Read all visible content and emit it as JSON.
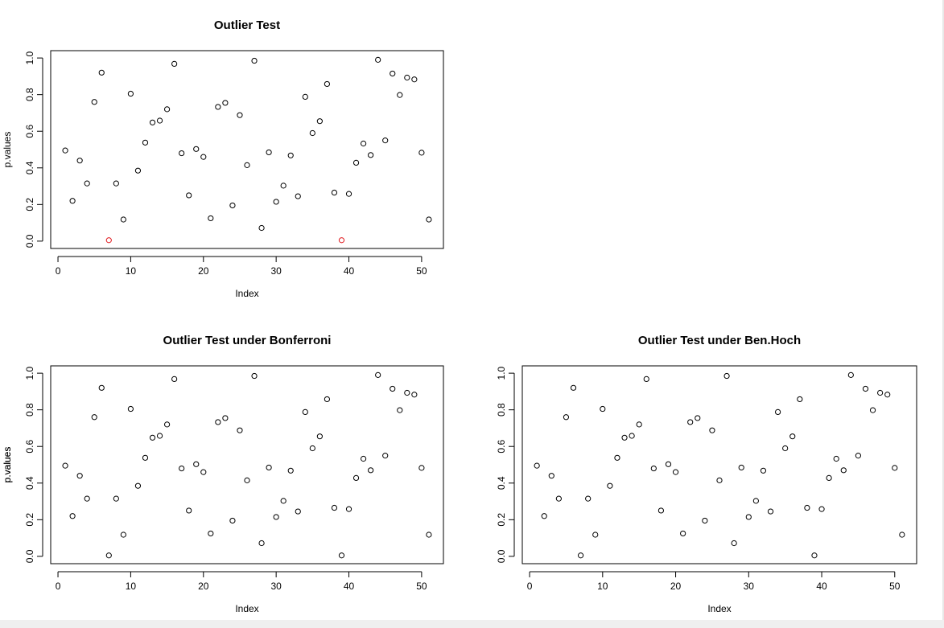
{
  "colors": {
    "point": "#000000",
    "outlier": "#e0161b",
    "axis": "#000000"
  },
  "chart_data": [
    {
      "type": "scatter",
      "title": "Outlier Test",
      "xlabel": "Index",
      "ylabel": "p.values",
      "xlim": [
        0,
        51
      ],
      "ylim": [
        0,
        1
      ],
      "xticks": [
        "0",
        "10",
        "20",
        "30",
        "40",
        "50"
      ],
      "yticks": [
        "0.0",
        "0.2",
        "0.4",
        "0.6",
        "0.8",
        "1.0"
      ],
      "grid": false,
      "marker": "open-circle",
      "x": [
        1,
        2,
        3,
        4,
        5,
        6,
        7,
        8,
        9,
        10,
        11,
        12,
        13,
        14,
        15,
        16,
        17,
        18,
        19,
        20,
        21,
        22,
        23,
        24,
        25,
        26,
        27,
        28,
        29,
        30,
        31,
        32,
        33,
        34,
        35,
        36,
        37,
        38,
        39,
        40,
        41,
        42,
        43,
        44,
        45,
        46,
        47,
        48,
        49,
        50,
        51
      ],
      "y": [
        0.495,
        0.22,
        0.44,
        0.315,
        0.76,
        0.92,
        0.005,
        0.315,
        0.118,
        0.805,
        0.385,
        0.538,
        0.648,
        0.658,
        0.72,
        0.968,
        0.48,
        0.25,
        0.503,
        0.46,
        0.125,
        0.733,
        0.755,
        0.195,
        0.688,
        0.415,
        0.985,
        0.072,
        0.485,
        0.215,
        0.303,
        0.468,
        0.245,
        0.788,
        0.59,
        0.655,
        0.858,
        0.265,
        0.005,
        0.258,
        0.428,
        0.533,
        0.47,
        0.99,
        0.55,
        0.915,
        0.798,
        0.893,
        0.883,
        0.483,
        0.118
      ],
      "highlighted_x": [
        7,
        39
      ]
    },
    {
      "type": "scatter",
      "title": "Outlier Test under Bonferroni",
      "xlabel": "Index",
      "ylabel": "p.values",
      "xlim": [
        0,
        51
      ],
      "ylim": [
        0,
        1
      ],
      "xticks": [
        "0",
        "10",
        "20",
        "30",
        "40",
        "50"
      ],
      "yticks": [
        "0.0",
        "0.2",
        "0.4",
        "0.6",
        "0.8",
        "1.0"
      ],
      "grid": false,
      "marker": "open-circle",
      "x": [
        1,
        2,
        3,
        4,
        5,
        6,
        7,
        8,
        9,
        10,
        11,
        12,
        13,
        14,
        15,
        16,
        17,
        18,
        19,
        20,
        21,
        22,
        23,
        24,
        25,
        26,
        27,
        28,
        29,
        30,
        31,
        32,
        33,
        34,
        35,
        36,
        37,
        38,
        39,
        40,
        41,
        42,
        43,
        44,
        45,
        46,
        47,
        48,
        49,
        50,
        51
      ],
      "y": [
        0.495,
        0.22,
        0.44,
        0.315,
        0.76,
        0.92,
        0.005,
        0.315,
        0.118,
        0.805,
        0.385,
        0.538,
        0.648,
        0.658,
        0.72,
        0.968,
        0.48,
        0.25,
        0.503,
        0.46,
        0.125,
        0.733,
        0.755,
        0.195,
        0.688,
        0.415,
        0.985,
        0.072,
        0.485,
        0.215,
        0.303,
        0.468,
        0.245,
        0.788,
        0.59,
        0.655,
        0.858,
        0.265,
        0.005,
        0.258,
        0.428,
        0.533,
        0.47,
        0.99,
        0.55,
        0.915,
        0.798,
        0.893,
        0.883,
        0.483,
        0.118
      ],
      "highlighted_x": []
    },
    {
      "type": "scatter",
      "title": "Outlier Test under Ben.Hoch",
      "xlabel": "Index",
      "ylabel": "p.values",
      "xlim": [
        0,
        51
      ],
      "ylim": [
        0,
        1
      ],
      "xticks": [
        "0",
        "10",
        "20",
        "30",
        "40",
        "50"
      ],
      "yticks": [
        "0.0",
        "0.2",
        "0.4",
        "0.6",
        "0.8",
        "1.0"
      ],
      "grid": false,
      "marker": "open-circle",
      "x": [
        1,
        2,
        3,
        4,
        5,
        6,
        7,
        8,
        9,
        10,
        11,
        12,
        13,
        14,
        15,
        16,
        17,
        18,
        19,
        20,
        21,
        22,
        23,
        24,
        25,
        26,
        27,
        28,
        29,
        30,
        31,
        32,
        33,
        34,
        35,
        36,
        37,
        38,
        39,
        40,
        41,
        42,
        43,
        44,
        45,
        46,
        47,
        48,
        49,
        50,
        51
      ],
      "y": [
        0.495,
        0.22,
        0.44,
        0.315,
        0.76,
        0.92,
        0.005,
        0.315,
        0.118,
        0.805,
        0.385,
        0.538,
        0.648,
        0.658,
        0.72,
        0.968,
        0.48,
        0.25,
        0.503,
        0.46,
        0.125,
        0.733,
        0.755,
        0.195,
        0.688,
        0.415,
        0.985,
        0.072,
        0.485,
        0.215,
        0.303,
        0.468,
        0.245,
        0.788,
        0.59,
        0.655,
        0.858,
        0.265,
        0.005,
        0.258,
        0.428,
        0.533,
        0.47,
        0.99,
        0.55,
        0.915,
        0.798,
        0.893,
        0.883,
        0.483,
        0.118
      ],
      "highlighted_x": []
    }
  ]
}
